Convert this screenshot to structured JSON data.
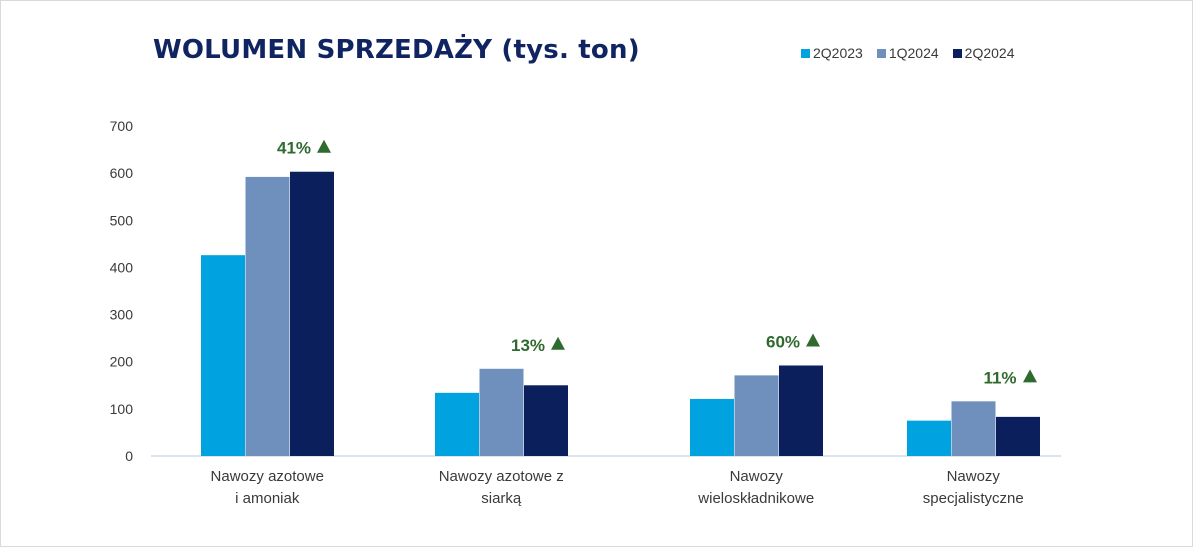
{
  "chart_data": {
    "type": "bar",
    "title": "WOLUMEN SPRZEDAŻY (tys. ton)",
    "categories": [
      [
        "Nawozy azotowe",
        "i amoniak"
      ],
      [
        "Nawozy azotowe z",
        "siarką"
      ],
      [
        "Nawozy",
        "wieloskładnikowe"
      ],
      [
        "Nawozy",
        "specjalistyczne"
      ]
    ],
    "series": [
      {
        "name": "2Q2023",
        "color": "#00a3e0",
        "values": [
          426,
          134,
          121,
          75
        ]
      },
      {
        "name": "1Q2024",
        "color": "#6f8fbd",
        "values": [
          592,
          185,
          171,
          116
        ]
      },
      {
        "name": "2Q2024",
        "color": "#0a1f5c",
        "values": [
          603,
          150,
          192,
          83
        ]
      }
    ],
    "growth_labels": [
      "41%",
      "13%",
      "60%",
      "11%"
    ],
    "growth_color": "#2f6a2f",
    "ylim": [
      0,
      700
    ],
    "yticks": [
      0,
      100,
      200,
      300,
      400,
      500,
      600,
      700
    ],
    "grid": false,
    "legend_position": "top-right"
  }
}
